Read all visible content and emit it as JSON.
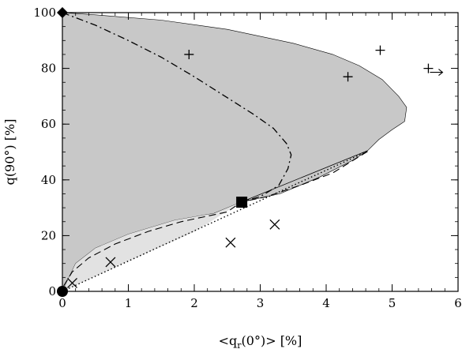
{
  "chart_data": {
    "type": "scatter",
    "title": "",
    "xlabel_parts": [
      "<q",
      "r",
      "(0°)> [%]"
    ],
    "ylabel": "q(90°) [%]",
    "xlim": [
      0,
      6
    ],
    "ylim": [
      0,
      100
    ],
    "xticks": [
      0,
      1,
      2,
      3,
      4,
      5,
      6
    ],
    "yticks": [
      0,
      20,
      40,
      60,
      80,
      100
    ],
    "grid": false,
    "regions": [
      {
        "name": "dark-shaded-region",
        "color": "#c8c8c8",
        "polygon": [
          [
            0,
            100
          ],
          [
            0.5,
            99.2
          ],
          [
            1.5,
            97.3
          ],
          [
            2.5,
            94
          ],
          [
            3.5,
            89
          ],
          [
            4.1,
            85
          ],
          [
            4.5,
            81
          ],
          [
            4.85,
            76
          ],
          [
            5.1,
            70
          ],
          [
            5.22,
            66
          ],
          [
            5.19,
            61
          ],
          [
            5.0,
            58
          ],
          [
            4.8,
            54.5
          ],
          [
            4.63,
            50.5
          ],
          [
            4.4,
            47
          ],
          [
            3.9,
            41
          ],
          [
            3.3,
            35
          ],
          [
            2.71,
            32
          ],
          [
            2.3,
            28
          ],
          [
            1.7,
            25.5
          ],
          [
            1.0,
            20.5
          ],
          [
            0.5,
            15.5
          ],
          [
            0.2,
            10
          ],
          [
            0.0,
            0
          ]
        ]
      },
      {
        "name": "light-shaded-region",
        "color": "#e2e2e2",
        "polygon": [
          [
            0,
            0
          ],
          [
            0.2,
            10
          ],
          [
            0.5,
            15.5
          ],
          [
            1.0,
            20.5
          ],
          [
            1.7,
            25.5
          ],
          [
            2.3,
            28
          ],
          [
            2.71,
            32
          ],
          [
            2.0,
            21.3
          ],
          [
            1.0,
            10.8
          ],
          [
            0,
            0
          ]
        ]
      }
    ],
    "series": [
      {
        "style": "dash-dot",
        "points": [
          [
            0,
            100
          ],
          [
            0.5,
            95.5
          ],
          [
            1.0,
            90
          ],
          [
            1.5,
            84
          ],
          [
            2.0,
            77
          ],
          [
            2.5,
            69.5
          ],
          [
            2.9,
            63.5
          ],
          [
            3.2,
            58.5
          ],
          [
            3.4,
            53
          ],
          [
            3.47,
            49
          ],
          [
            3.42,
            44
          ],
          [
            3.28,
            38
          ],
          [
            3.0,
            34
          ],
          [
            2.71,
            32
          ]
        ]
      },
      {
        "style": "dashed",
        "points": [
          [
            0.02,
            2
          ],
          [
            0.15,
            7
          ],
          [
            0.4,
            12
          ],
          [
            0.8,
            17
          ],
          [
            1.3,
            21.5
          ],
          [
            1.8,
            25
          ],
          [
            2.2,
            27
          ],
          [
            2.5,
            28.5
          ],
          [
            2.71,
            32
          ],
          [
            3.1,
            34
          ],
          [
            3.6,
            38
          ],
          [
            4.1,
            42.5
          ],
          [
            4.65,
            50.5
          ]
        ]
      },
      {
        "style": "dotted",
        "points": [
          [
            0,
            0
          ],
          [
            4.65,
            50.5
          ]
        ]
      },
      {
        "style": "solid-thin",
        "points": [
          [
            2.71,
            32
          ],
          [
            4.63,
            50.5
          ]
        ]
      }
    ],
    "markers": [
      {
        "symbol": "diamond",
        "x": 0,
        "y": 100
      },
      {
        "symbol": "circle",
        "x": 0,
        "y": 0
      },
      {
        "symbol": "square",
        "x": 2.72,
        "y": 32
      },
      {
        "symbol": "plus",
        "x": 1.92,
        "y": 85
      },
      {
        "symbol": "plus",
        "x": 4.33,
        "y": 77
      },
      {
        "symbol": "plus",
        "x": 4.82,
        "y": 86.5
      },
      {
        "symbol": "plus-arrow",
        "x": 5.55,
        "y": 80
      },
      {
        "symbol": "cross",
        "x": 0.15,
        "y": 3
      },
      {
        "symbol": "cross",
        "x": 0.73,
        "y": 10.5
      },
      {
        "symbol": "cross",
        "x": 2.55,
        "y": 17.5
      },
      {
        "symbol": "cross",
        "x": 3.22,
        "y": 24
      }
    ]
  }
}
